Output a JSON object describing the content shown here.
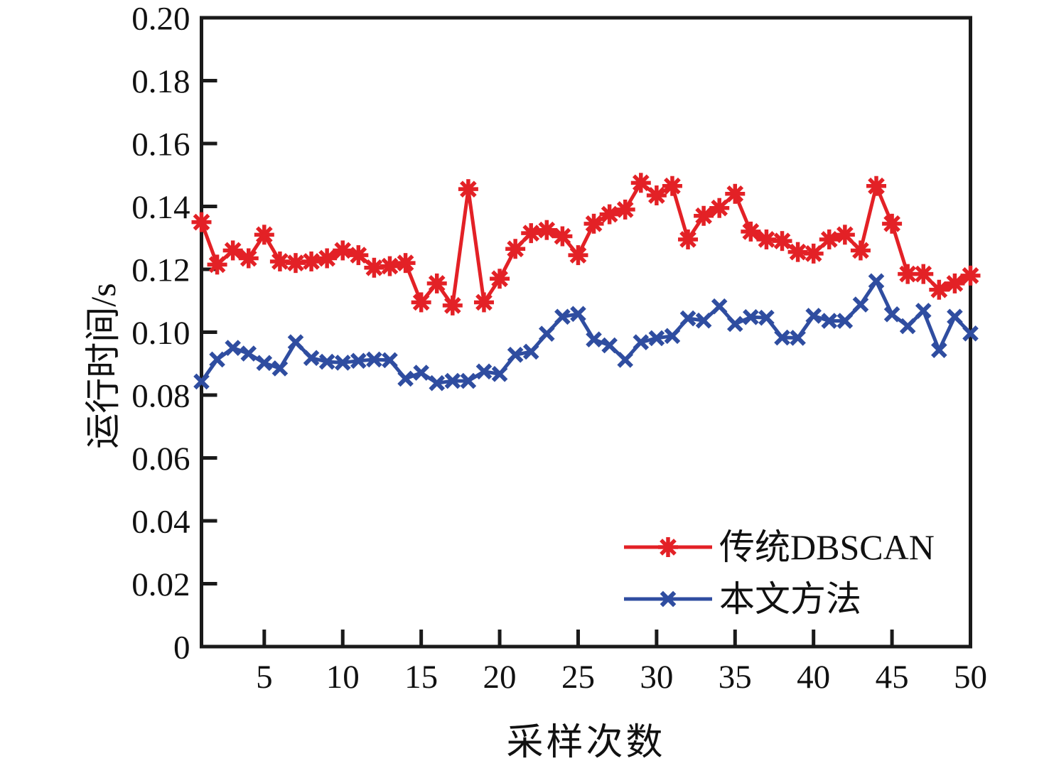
{
  "chart_data": {
    "type": "line",
    "title": "",
    "xlabel": "采样次数",
    "ylabel": "运行时间/s",
    "x_range": [
      1,
      50
    ],
    "y_range": [
      0,
      0.2
    ],
    "x_ticks": [
      5,
      10,
      15,
      20,
      25,
      30,
      35,
      40,
      45,
      50
    ],
    "y_ticks": [
      0,
      0.02,
      0.04,
      0.06,
      0.08,
      0.1,
      0.12,
      0.14,
      0.16,
      0.18,
      0.2
    ],
    "y_tick_labels": [
      "0",
      "0.02",
      "0.04",
      "0.06",
      "0.08",
      "0.10",
      "0.12",
      "0.14",
      "0.16",
      "0.18",
      "0.20"
    ],
    "grid": false,
    "legend_position": "inside-lower-right",
    "x": [
      1,
      2,
      3,
      4,
      5,
      6,
      7,
      8,
      9,
      10,
      11,
      12,
      13,
      14,
      15,
      16,
      17,
      18,
      19,
      20,
      21,
      22,
      23,
      24,
      25,
      26,
      27,
      28,
      29,
      30,
      31,
      32,
      33,
      34,
      35,
      36,
      37,
      38,
      39,
      40,
      41,
      42,
      43,
      44,
      45,
      46,
      47,
      48,
      49,
      50
    ],
    "series": [
      {
        "name": "传统DBSCAN",
        "color": "#e32126",
        "marker": "asterisk",
        "values": [
          0.135,
          0.1215,
          0.126,
          0.1235,
          0.131,
          0.1225,
          0.122,
          0.1225,
          0.1235,
          0.126,
          0.1245,
          0.1205,
          0.121,
          0.122,
          0.1095,
          0.1155,
          0.1085,
          0.1455,
          0.1095,
          0.117,
          0.1265,
          0.1315,
          0.1325,
          0.1305,
          0.1245,
          0.1345,
          0.1375,
          0.139,
          0.1475,
          0.1435,
          0.1465,
          0.1295,
          0.137,
          0.1395,
          0.144,
          0.132,
          0.1295,
          0.129,
          0.1255,
          0.125,
          0.1295,
          0.131,
          0.126,
          0.1465,
          0.1345,
          0.1185,
          0.1185,
          0.1135,
          0.1155,
          0.118
        ]
      },
      {
        "name": "本文方法",
        "color": "#2f4da0",
        "marker": "x",
        "values": [
          0.0843,
          0.0913,
          0.095,
          0.0932,
          0.0902,
          0.0885,
          0.0968,
          0.0918,
          0.0906,
          0.0903,
          0.0909,
          0.0913,
          0.0911,
          0.0852,
          0.0871,
          0.0838,
          0.0845,
          0.0845,
          0.0875,
          0.0867,
          0.0928,
          0.0938,
          0.0995,
          0.1049,
          0.1058,
          0.0977,
          0.0958,
          0.0912,
          0.0968,
          0.0981,
          0.0988,
          0.1044,
          0.1037,
          0.1082,
          0.1026,
          0.1048,
          0.1046,
          0.0983,
          0.0982,
          0.1052,
          0.1036,
          0.1036,
          0.1088,
          0.1162,
          0.1057,
          0.1019,
          0.1068,
          0.0943,
          0.1049,
          0.0996
        ]
      }
    ],
    "axis_color": "#1a1a1a",
    "background_color": "#ffffff"
  }
}
